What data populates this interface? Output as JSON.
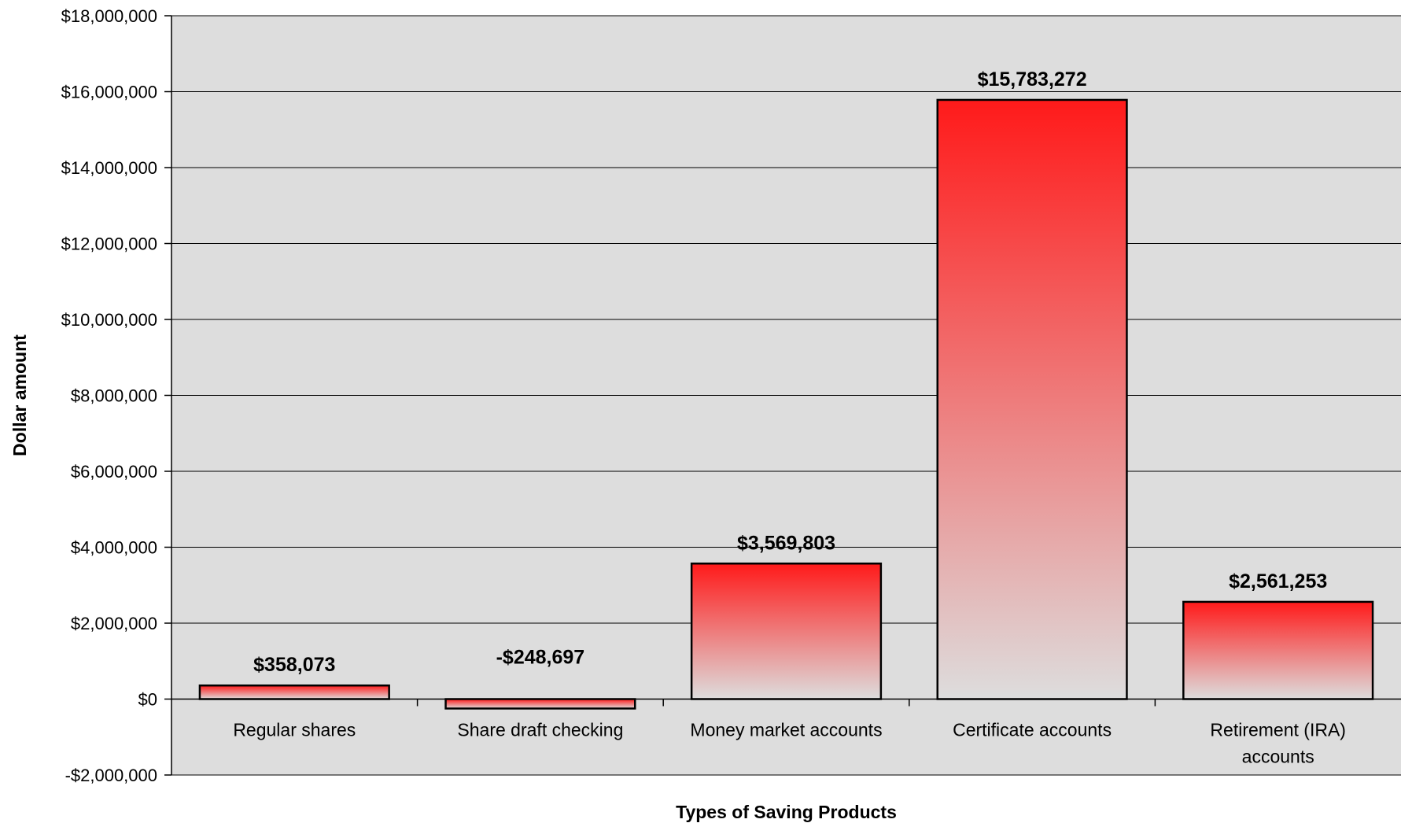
{
  "chart_data": {
    "type": "bar",
    "title": "",
    "xlabel": "Types of Saving Products",
    "ylabel": "Dollar amount",
    "categories": [
      [
        "Regular shares"
      ],
      [
        "Share draft checking"
      ],
      [
        "Money market accounts"
      ],
      [
        "Certificate accounts"
      ],
      [
        "Retirement (IRA)",
        "accounts"
      ]
    ],
    "values": [
      358073,
      -248697,
      3569803,
      15783272,
      2561253
    ],
    "value_labels": [
      "$358,073",
      "-$248,697",
      "$3,569,803",
      "$15,783,272",
      "$2,561,253"
    ],
    "ylim": [
      -2000000,
      18000000
    ],
    "yticks": [
      -2000000,
      0,
      2000000,
      4000000,
      6000000,
      8000000,
      10000000,
      12000000,
      14000000,
      16000000,
      18000000
    ],
    "ytick_labels": [
      "-$2,000,000",
      "$0",
      "$2,000,000",
      "$4,000,000",
      "$6,000,000",
      "$8,000,000",
      "$10,000,000",
      "$12,000,000",
      "$14,000,000",
      "$16,000,000",
      "$18,000,000"
    ],
    "grid": true,
    "legend": "none",
    "colors": {
      "plot_background": "#dddddd",
      "bar_top": "#ff1a1a",
      "bar_bottom": "#dddddd",
      "bar_outline": "#000000",
      "grid": "#000000"
    }
  }
}
